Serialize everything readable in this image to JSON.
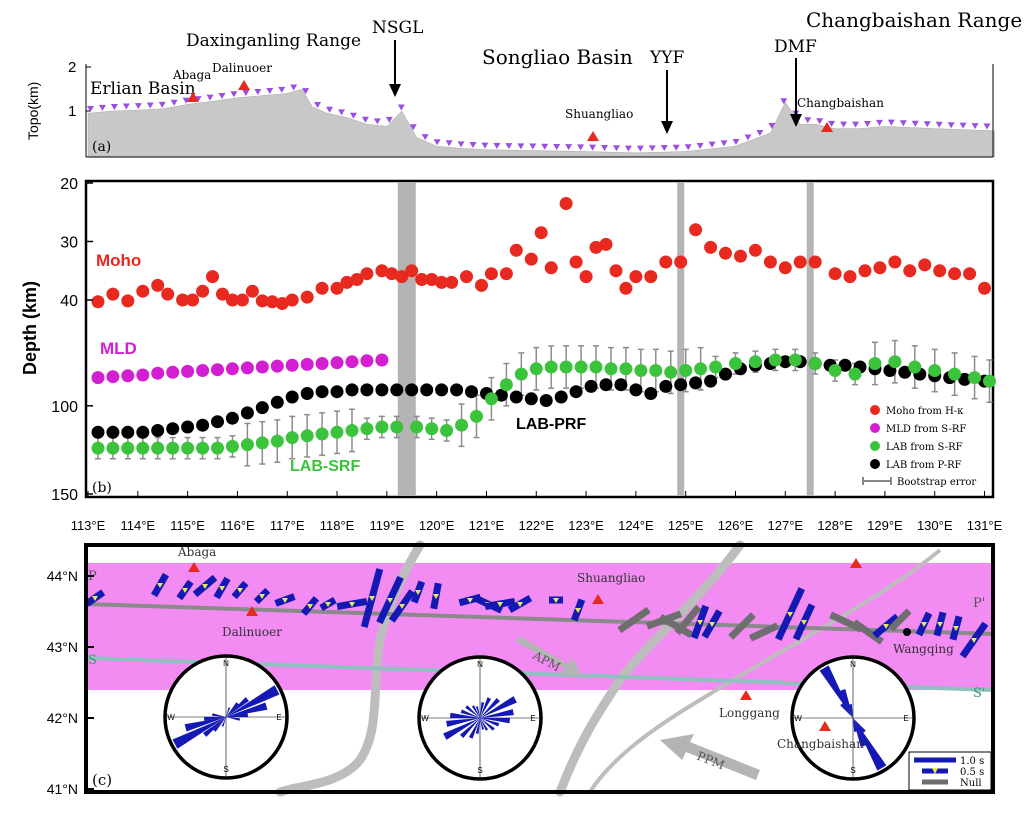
{
  "figure": {
    "colors": {
      "moho": "#e8291f",
      "mld": "#d21fd2",
      "lab_s": "#3cc33c",
      "lab_p": "#000000",
      "topo": "#c8c8c8",
      "station": "#9b4fe0",
      "pink_band": "#f28cf2",
      "fast_axis": "#1419b4",
      "null": "#6e6e6e"
    }
  },
  "panel_a": {
    "panel_label": "(a)",
    "ylabel": "Topo(km)",
    "yticks": [
      "2",
      "1"
    ],
    "regions": [
      "Erlian Basin",
      "Daxinganling Range",
      "Songliao Basin",
      "Changbaishan Range"
    ],
    "volcanoes": [
      "Abaga",
      "Dalinuoer",
      "Shuangliao",
      "Changbaishan"
    ],
    "faults": [
      "NSGL",
      "YYF",
      "DMF"
    ]
  },
  "chart_data": [
    {
      "type": "area",
      "title": "",
      "xlabel": "",
      "ylabel": "Topo(km)",
      "xlim": [
        113,
        131.2
      ],
      "ylim": [
        0,
        2
      ],
      "x": [
        113,
        113.5,
        114,
        114.5,
        115,
        115.5,
        116,
        116.5,
        117,
        117.3,
        117.5,
        117.8,
        118.2,
        118.6,
        119,
        119.3,
        119.6,
        120,
        120.5,
        121,
        122,
        123,
        124,
        125,
        126,
        126.7,
        127,
        127.3,
        127.6,
        128,
        128.5,
        129,
        130,
        131.2
      ],
      "y": [
        0.95,
        1.0,
        1.02,
        1.05,
        1.15,
        1.22,
        1.3,
        1.35,
        1.4,
        1.5,
        1.1,
        0.95,
        0.85,
        0.7,
        0.65,
        1.0,
        0.4,
        0.2,
        0.15,
        0.12,
        0.1,
        0.08,
        0.05,
        0.08,
        0.2,
        0.5,
        1.2,
        0.7,
        0.7,
        0.6,
        0.6,
        0.65,
        0.6,
        0.55
      ]
    },
    {
      "type": "scatter",
      "title": "",
      "xlabel": "",
      "ylabel": "Depth (km)",
      "ylim": [
        20,
        150
      ],
      "xlim": [
        113,
        131.2
      ],
      "xticks": [
        "113°E",
        "114°E",
        "115°E",
        "116°E",
        "117°E",
        "118°E",
        "119°E",
        "120°E",
        "121°E",
        "122°E",
        "123°E",
        "124°E",
        "125°E",
        "126°E",
        "127°E",
        "128°E",
        "129°E",
        "130°E",
        "131°E"
      ],
      "yticks": [
        "20",
        "30",
        "40",
        "100",
        "150"
      ],
      "panel_label": "(b)",
      "vertical_bands": [
        119.4,
        124.9,
        127.5
      ],
      "annotations": [
        "Moho",
        "MLD",
        "LAB-SRF",
        "LAB-PRF"
      ],
      "legend_position": "bottom-right",
      "legend": [
        "Moho from H-κ",
        "MLD from S-RF",
        "LAB from S-RF",
        "LAB from P-RF",
        "Bootstrap error"
      ],
      "series": [
        {
          "name": "Moho from H-κ",
          "x": [
            113.2,
            113.5,
            113.8,
            114.1,
            114.4,
            114.6,
            114.9,
            115.1,
            115.3,
            115.5,
            115.7,
            115.9,
            116.1,
            116.3,
            116.5,
            116.7,
            116.9,
            117.1,
            117.4,
            117.7,
            118.0,
            118.2,
            118.4,
            118.6,
            118.9,
            119.1,
            119.3,
            119.5,
            119.7,
            119.9,
            120.1,
            120.3,
            120.6,
            120.9,
            121.1,
            121.4,
            121.6,
            121.9,
            122.1,
            122.3,
            122.6,
            122.8,
            123.0,
            123.2,
            123.4,
            123.6,
            123.8,
            124.0,
            124.3,
            124.6,
            124.9,
            125.2,
            125.5,
            125.8,
            126.1,
            126.4,
            126.7,
            127.0,
            127.3,
            127.6,
            128.0,
            128.3,
            128.6,
            128.9,
            129.2,
            129.5,
            129.8,
            130.1,
            130.4,
            130.7,
            131.0
          ],
          "y": [
            41,
            39,
            40.5,
            38.5,
            37.5,
            39,
            40,
            40,
            38.5,
            36,
            39,
            40,
            40,
            38.5,
            40.5,
            41,
            42,
            40,
            39.5,
            38,
            38,
            37,
            36.5,
            35.5,
            35,
            35.5,
            36,
            35,
            36.5,
            36.5,
            37,
            37,
            36,
            37.5,
            35.5,
            35.5,
            31.5,
            33,
            28.5,
            34.5,
            23.5,
            33.5,
            36,
            31,
            30.5,
            35,
            38,
            36,
            36,
            33.5,
            33.5,
            28,
            31,
            32,
            32.5,
            31.5,
            33.5,
            34.5,
            33.5,
            33.5,
            35.5,
            36,
            35,
            34.5,
            33.5,
            35,
            34,
            35,
            35.5,
            35.5,
            38
          ]
        },
        {
          "name": "MLD from S-RF",
          "x": [
            113.2,
            113.5,
            113.8,
            114.1,
            114.4,
            114.7,
            115.0,
            115.3,
            115.6,
            115.9,
            116.2,
            116.5,
            116.8,
            117.1,
            117.4,
            117.7,
            118.0,
            118.3,
            118.6,
            118.9
          ],
          "y": [
            84,
            83.5,
            83,
            82.5,
            81.5,
            81,
            80.5,
            80,
            79.5,
            79,
            78.5,
            78,
            77.5,
            77,
            76.5,
            76,
            75.5,
            75,
            74.5,
            74
          ]
        },
        {
          "name": "LAB from S-RF",
          "x": [
            113.2,
            113.5,
            113.8,
            114.1,
            114.4,
            114.7,
            115.0,
            115.3,
            115.6,
            115.9,
            116.2,
            116.5,
            116.8,
            117.1,
            117.4,
            117.7,
            118.0,
            118.3,
            118.6,
            118.9,
            119.2,
            119.6,
            119.9,
            120.2,
            120.5,
            120.8,
            121.1,
            121.4,
            121.7,
            122.0,
            122.3,
            122.6,
            122.9,
            123.2,
            123.5,
            123.8,
            124.1,
            124.4,
            124.7,
            125.0,
            125.3,
            125.6,
            126.0,
            126.4,
            126.8,
            127.2,
            127.6,
            128.0,
            128.4,
            128.8,
            129.2,
            129.6,
            130.0,
            130.4,
            130.8,
            131.1
          ],
          "y": [
            124,
            124,
            124,
            124,
            124,
            124,
            124,
            124,
            124,
            123,
            122,
            121,
            120,
            118,
            117,
            116,
            115,
            114,
            113,
            112,
            112,
            112,
            113,
            114,
            111,
            106,
            96,
            88,
            82,
            79,
            78,
            78,
            78,
            78,
            79,
            79,
            80,
            80,
            81,
            80,
            79,
            78,
            76,
            75,
            74,
            74,
            76,
            80,
            82,
            76,
            75,
            78,
            80,
            82,
            84,
            86
          ]
        },
        {
          "name": "LAB from P-RF",
          "x": [
            113.2,
            113.5,
            113.8,
            114.1,
            114.4,
            114.7,
            115.0,
            115.3,
            115.6,
            115.9,
            116.2,
            116.5,
            116.8,
            117.1,
            117.4,
            117.7,
            118.0,
            118.3,
            118.6,
            118.9,
            119.2,
            119.5,
            119.8,
            120.1,
            120.4,
            120.7,
            121.0,
            121.3,
            121.6,
            121.9,
            122.2,
            122.5,
            122.8,
            123.1,
            123.4,
            123.7,
            124.0,
            124.3,
            124.6,
            124.9,
            125.2,
            125.5,
            125.8,
            126.1,
            126.4,
            126.7,
            127.0,
            127.3,
            127.6,
            127.9,
            128.2,
            128.5,
            128.8,
            129.1,
            129.4,
            129.7,
            130.0,
            130.3,
            130.6,
            131.0
          ],
          "y": [
            115,
            115,
            115,
            115,
            114,
            113,
            112,
            111,
            109,
            107,
            104,
            101,
            98,
            95,
            93,
            92,
            92,
            91,
            91,
            91,
            91,
            91,
            91,
            91,
            91,
            92,
            93,
            94,
            95,
            96,
            97,
            95,
            92,
            89,
            88,
            88,
            91,
            93,
            89,
            88,
            87,
            86,
            82,
            79,
            77,
            76,
            75,
            75,
            76,
            77,
            77,
            78,
            79,
            80,
            81,
            82,
            83,
            84,
            85,
            86
          ]
        }
      ]
    },
    {
      "type": "scatter",
      "title": "",
      "xlabel": "",
      "ylabel": "",
      "xlim": [
        113,
        131.2
      ],
      "ylim": [
        41,
        44.3
      ],
      "yticks": [
        "44°N",
        "43°N",
        "42°N",
        "41°N"
      ],
      "panel_label": "(c)",
      "labels": [
        "P",
        "P'",
        "S",
        "S'",
        "APM",
        "PPM",
        "Abaga",
        "Dalinuoer",
        "Shuangliao",
        "Longgang",
        "Changbaishan",
        "Wangqing"
      ],
      "legend": [
        "1.0 s",
        "0.5 s",
        "Null"
      ],
      "legend_position": "bottom-right"
    }
  ]
}
